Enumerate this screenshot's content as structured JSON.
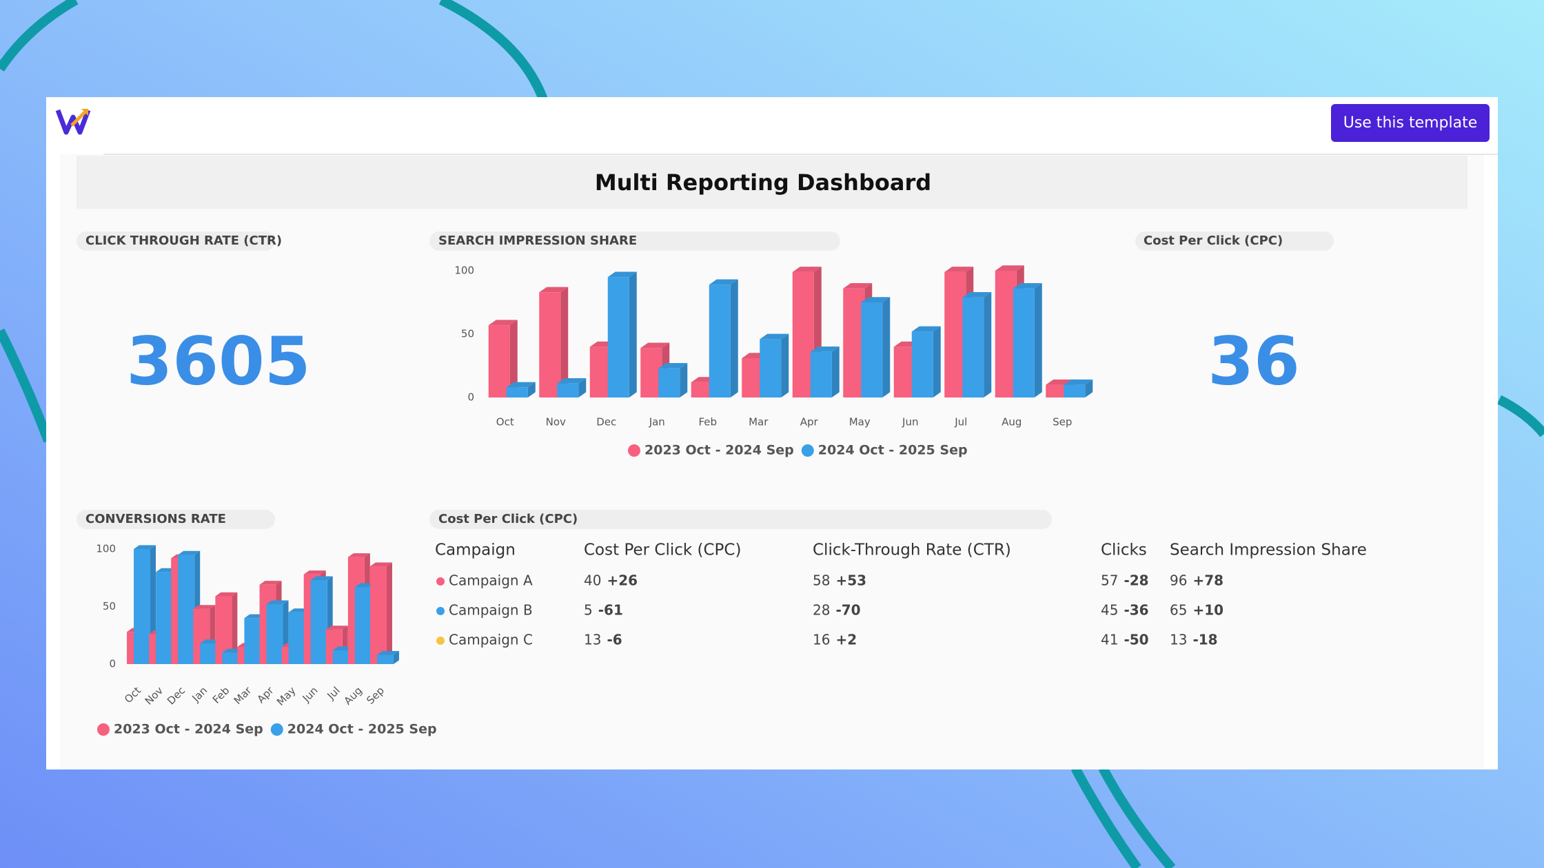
{
  "header": {
    "button": "Use this template"
  },
  "title": "Multi Reporting Dashboard",
  "kpis": [
    {
      "label": "CLICK THROUGH RATE (CTR)",
      "value": 3605
    },
    {
      "label": "Cost Per Click (CPC)",
      "value": 36
    }
  ],
  "chart_data": [
    {
      "type": "bar",
      "title": "SEARCH IMPRESSION SHARE",
      "categories": [
        "Oct",
        "Nov",
        "Dec",
        "Jan",
        "Feb",
        "Mar",
        "Apr",
        "May",
        "Jun",
        "Jul",
        "Aug",
        "Sep"
      ],
      "series": [
        {
          "name": "2023 Oct - 2024 Sep",
          "color": "#f7607f",
          "values": [
            57,
            83,
            40,
            39,
            12,
            31,
            99,
            86,
            40,
            99,
            100,
            10
          ]
        },
        {
          "name": "2024 Oct - 2025 Sep",
          "color": "#3aa0e8",
          "values": [
            8,
            11,
            95,
            23,
            89,
            46,
            36,
            75,
            52,
            79,
            86,
            10
          ]
        }
      ],
      "ylim": [
        0,
        100
      ],
      "yticks": [
        0,
        50,
        100
      ]
    },
    {
      "type": "bar",
      "title": "CONVERSIONS RATE",
      "categories": [
        "Oct",
        "Nov",
        "Dec",
        "Jan",
        "Feb",
        "Mar",
        "Apr",
        "May",
        "Jun",
        "Jul",
        "Aug",
        "Sep"
      ],
      "series": [
        {
          "name": "2023 Oct - 2024 Sep",
          "color": "#f7607f",
          "values": [
            28,
            26,
            92,
            48,
            59,
            15,
            69,
            15,
            78,
            30,
            93,
            85
          ]
        },
        {
          "name": "2024 Oct - 2025 Sep",
          "color": "#3aa0e8",
          "values": [
            100,
            80,
            95,
            18,
            10,
            40,
            52,
            45,
            73,
            12,
            67,
            8
          ]
        }
      ],
      "ylim": [
        0,
        100
      ],
      "yticks": [
        0,
        50,
        100
      ]
    }
  ],
  "table": {
    "title": "Cost Per Click (CPC)",
    "columns": [
      "Campaign",
      "Cost Per Click (CPC)",
      "Click-Through Rate (CTR)",
      "Clicks",
      "Search Impression Share"
    ],
    "rows": [
      {
        "name": "Campaign A",
        "color": "#f7607f",
        "cells": [
          [
            "40",
            "+26"
          ],
          [
            "58",
            "+53"
          ],
          [
            "57",
            "-28"
          ],
          [
            "96",
            "+78"
          ]
        ]
      },
      {
        "name": "Campaign B",
        "color": "#3aa0e8",
        "cells": [
          [
            "5",
            "-61"
          ],
          [
            "28",
            "-70"
          ],
          [
            "45",
            "-36"
          ],
          [
            "65",
            "+10"
          ]
        ]
      },
      {
        "name": "Campaign C",
        "color": "#f5c542",
        "cells": [
          [
            "13",
            "-6"
          ],
          [
            "16",
            "+2"
          ],
          [
            "41",
            "-50"
          ],
          [
            "13",
            "-18"
          ]
        ]
      }
    ]
  }
}
